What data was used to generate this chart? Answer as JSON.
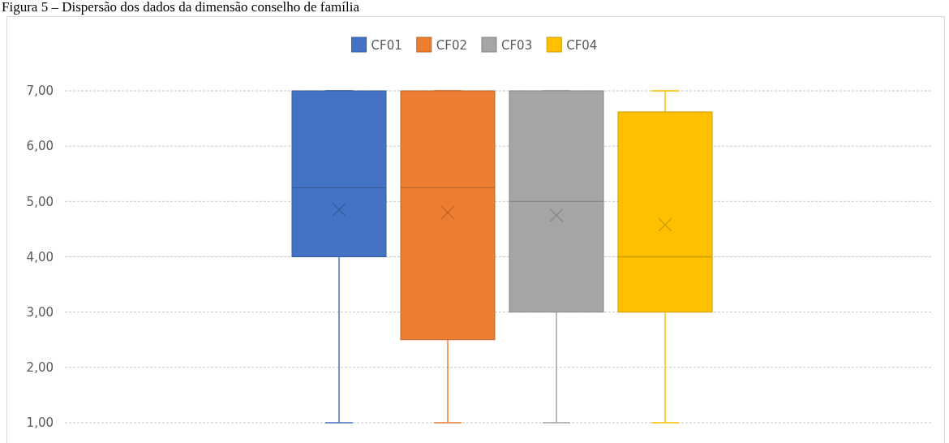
{
  "chart_data": {
    "type": "box",
    "title": "Figura 5 – Dispersão dos dados da dimensão conselho de família",
    "categories": [
      null
    ],
    "series": [
      {
        "name": "CF01",
        "color": "#4472c4",
        "boxes": [
          {
            "low": 1,
            "q1": 4,
            "median": 5.25,
            "q3": 7,
            "high": 7,
            "mean": 4.85
          }
        ]
      },
      {
        "name": "CF02",
        "color": "#ed7d31",
        "boxes": [
          {
            "low": 1,
            "q1": 2.5,
            "median": 5.25,
            "q3": 7,
            "high": 7,
            "mean": 4.8
          }
        ]
      },
      {
        "name": "CF03",
        "color": "#a5a5a5",
        "boxes": [
          {
            "low": 1,
            "q1": 3,
            "median": 5,
            "q3": 7,
            "high": 7,
            "mean": 4.75
          }
        ]
      },
      {
        "name": "CF04",
        "color": "#ffc000",
        "boxes": [
          {
            "low": 1,
            "q1": 3,
            "median": 4,
            "q3": 6.62,
            "high": 7,
            "mean": 4.58
          }
        ]
      }
    ],
    "ylim": [
      1,
      7
    ],
    "yticks": [
      {
        "value": 1,
        "label": "1,00"
      },
      {
        "value": 2,
        "label": "2,00"
      },
      {
        "value": 3,
        "label": "3,00"
      },
      {
        "value": 4,
        "label": "4,00"
      },
      {
        "value": 5,
        "label": "5,00"
      },
      {
        "value": 6,
        "label": "6,00"
      },
      {
        "value": 7,
        "label": "7,00"
      }
    ],
    "grid": "y",
    "legend": "top",
    "marker": "cross"
  }
}
